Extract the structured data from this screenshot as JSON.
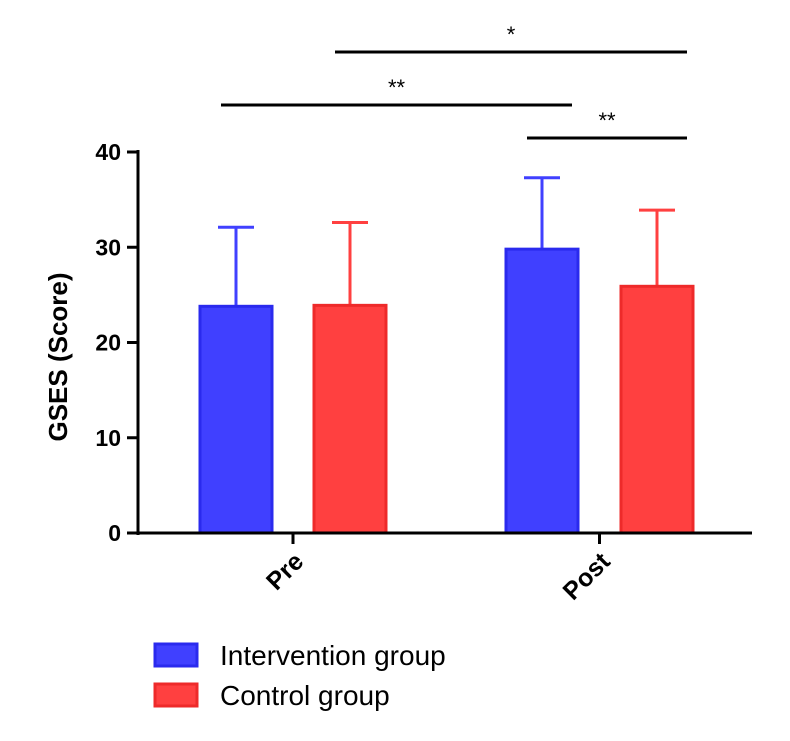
{
  "chart_data": {
    "type": "bar",
    "title": "",
    "xlabel": "",
    "ylabel": "GSES (Score)",
    "ylim": [
      0,
      40
    ],
    "yticks": [
      0,
      10,
      20,
      30,
      40
    ],
    "categories": [
      "Pre",
      "Post"
    ],
    "series": [
      {
        "name": "Intervention group",
        "values": [
          23.8,
          29.8
        ],
        "errors": [
          8.3,
          7.5
        ],
        "fill": "#4040ff",
        "stroke": "#2a2aee"
      },
      {
        "name": "Control group",
        "values": [
          23.9,
          25.9
        ],
        "errors": [
          8.7,
          8.0
        ],
        "fill": "#ff4040",
        "stroke": "#ee2a2a"
      }
    ],
    "significance": [
      {
        "label": "*",
        "from": "Pre / Control group",
        "to": "Post / Control group"
      },
      {
        "label": "**",
        "from": "Pre / Intervention group",
        "to": "Post / Intervention group"
      },
      {
        "label": "**",
        "from": "Post / Intervention group",
        "to": "Post / Control group"
      }
    ],
    "legend": "bottom-left"
  }
}
